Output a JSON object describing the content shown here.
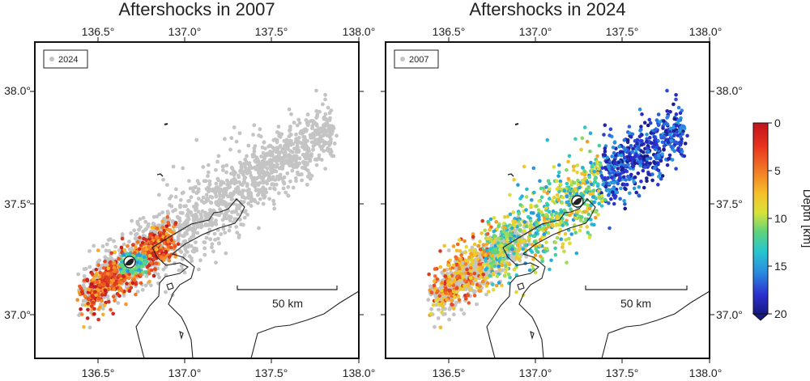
{
  "panels": [
    {
      "title": "Aftershocks in 2007",
      "legend_label": "2024",
      "highlight_year": "2007",
      "background_year": "2024",
      "scalebar_label": "50 km",
      "lon_ticks": [
        "136.5°",
        "137.0°",
        "137.5°",
        "138.0°"
      ],
      "lat_ticks": [
        "38.0°",
        "37.5°",
        "37.0°"
      ]
    },
    {
      "title": "Aftershocks in 2024",
      "legend_label": "2007",
      "highlight_year": "2024",
      "background_year": "2007",
      "scalebar_label": "50 km",
      "lon_ticks": [
        "136.5°",
        "137.0°",
        "137.5°",
        "138.0°"
      ],
      "lat_ticks": [
        "38.0°",
        "37.5°",
        "37.0°"
      ]
    }
  ],
  "colorbar": {
    "title": "Depth [km]",
    "ticks": [
      "0",
      "5",
      "10",
      "15",
      "20"
    ],
    "range_km": [
      0,
      20
    ],
    "colors": [
      "#c0141d",
      "#f15a24",
      "#f6c02a",
      "#d8e33a",
      "#5fd37b",
      "#27c7cf",
      "#2a8de0",
      "#2b2fd0",
      "#171a80"
    ]
  },
  "background_color": "#c4c4c4",
  "mainshock_2007": {
    "lon": 136.68,
    "lat": 37.22
  },
  "mainshock_2024": {
    "lon": 137.24,
    "lat": 37.49
  }
}
